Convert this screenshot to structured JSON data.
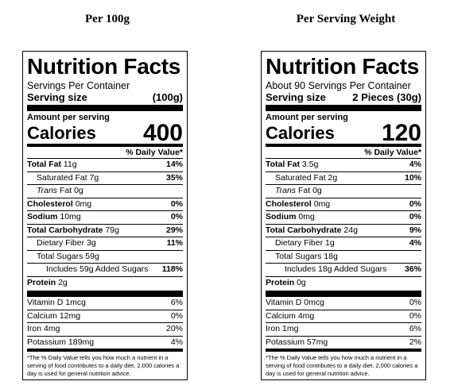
{
  "headings": {
    "left": "Per 100g",
    "right": "Per Serving Weight"
  },
  "panels": [
    {
      "title": "Nutrition Facts",
      "servings": "Servings Per Container",
      "serving_size_label": "Serving size",
      "serving_size_value": "(100g)",
      "amount_per_serving": "Amount per serving",
      "calories_label": "Calories",
      "calories_value": "400",
      "dv_header": "% Daily Value*",
      "total_fat": {
        "label": "Total Fat",
        "amount": "11g",
        "pct": "14%"
      },
      "saturated_fat": {
        "label": "Saturated Fat 7g",
        "pct": "35%"
      },
      "trans_fat": {
        "label_italic": "Trans",
        "label_rest": "Fat 0g"
      },
      "cholesterol": {
        "label": "Cholesterol",
        "amount": "0mg",
        "pct": "0%"
      },
      "sodium": {
        "label": "Sodium",
        "amount": "10mg",
        "pct": "0%"
      },
      "total_carb": {
        "label": "Total Carbohydrate",
        "amount": "79g",
        "pct": "29%"
      },
      "dietary_fiber": {
        "label": "Dietary Fiber 3g",
        "pct": "11%"
      },
      "total_sugars": {
        "label": "Total Sugars 59g"
      },
      "added_sugars": {
        "label": "Includes 59g Added Sugars",
        "pct": "118%"
      },
      "protein": {
        "label": "Protein",
        "amount": "2g"
      },
      "vitamin_d": {
        "label": "Vitamin D 1mcg",
        "pct": "6%"
      },
      "calcium": {
        "label": "Calcium 12mg",
        "pct": "0%"
      },
      "iron": {
        "label": "Iron 4mg",
        "pct": "20%"
      },
      "potassium": {
        "label": "Potassium 189mg",
        "pct": "4%"
      },
      "footnote": "*The % Daily Value tells you how much a nutrient in a serving of food contributes to a daily diet. 2,000 calories a day is used for general nutrition advice."
    },
    {
      "title": "Nutrition Facts",
      "servings": "About 90 Servings Per Container",
      "serving_size_label": "Serving size",
      "serving_size_value": "2 Pieces (30g)",
      "amount_per_serving": "Amount per serving",
      "calories_label": "Calories",
      "calories_value": "120",
      "dv_header": "% Daily Value*",
      "total_fat": {
        "label": "Total Fat",
        "amount": "3.5g",
        "pct": "4%"
      },
      "saturated_fat": {
        "label": "Saturated Fat 2g",
        "pct": "10%"
      },
      "trans_fat": {
        "label_italic": "Trans",
        "label_rest": "Fat 0g"
      },
      "cholesterol": {
        "label": "Cholesterol",
        "amount": "0mg",
        "pct": "0%"
      },
      "sodium": {
        "label": "Sodium",
        "amount": "0mg",
        "pct": "0%"
      },
      "total_carb": {
        "label": "Total Carbohydrate",
        "amount": "24g",
        "pct": "9%"
      },
      "dietary_fiber": {
        "label": "Dietary Fiber 1g",
        "pct": "4%"
      },
      "total_sugars": {
        "label": "Total Sugars 18g"
      },
      "added_sugars": {
        "label": "Includes 18g Added Sugars",
        "pct": "36%"
      },
      "protein": {
        "label": "Protein",
        "amount": "0g"
      },
      "vitamin_d": {
        "label": "Vitamin D 0mcg",
        "pct": "0%"
      },
      "calcium": {
        "label": "Calcium 4mg",
        "pct": "0%"
      },
      "iron": {
        "label": "Iron 1mg",
        "pct": "6%"
      },
      "potassium": {
        "label": "Potassium 57mg",
        "pct": "2%"
      },
      "footnote": "*The % Daily Value tells you how much a nutrient in a serving of food contributes to a daily diet. 2,000 calories a day is used for general nutrition advice."
    }
  ]
}
